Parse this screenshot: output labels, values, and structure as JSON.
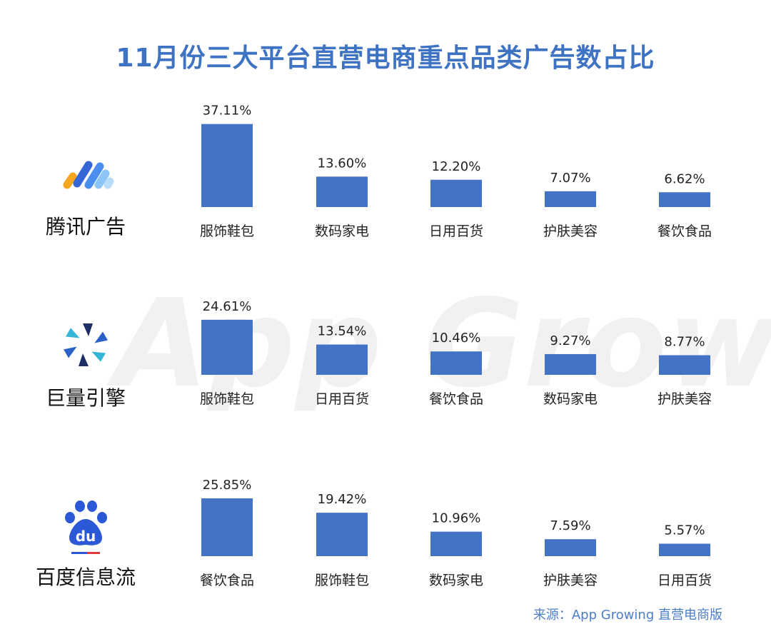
{
  "title": "11月份三大平台直营电商重点品类广告数占比",
  "watermark": "App Growing",
  "source": "来源：App Growing 直营电商版",
  "colors": {
    "bar": "#4472c4",
    "title": "#3e72c2",
    "text": "#222222",
    "source": "#4c7ec8"
  },
  "platforms": [
    {
      "name": "腾讯广告",
      "icon": "tencent-ads-logo-icon"
    },
    {
      "name": "巨量引擎",
      "icon": "ocean-engine-logo-icon"
    },
    {
      "name": "百度信息流",
      "icon": "baidu-paw-logo-icon"
    }
  ],
  "chart_data": [
    {
      "type": "bar",
      "title": "",
      "categories": [
        "服饰鞋包",
        "数码家电",
        "日用百货",
        "护肤美容",
        "餐饮食品"
      ],
      "values": [
        37.11,
        13.6,
        12.2,
        7.07,
        6.62
      ],
      "labels": [
        "37.11%",
        "13.60%",
        "12.20%",
        "7.07%",
        "6.62%"
      ]
    },
    {
      "type": "bar",
      "title": "",
      "categories": [
        "服饰鞋包",
        "日用百货",
        "餐饮食品",
        "数码家电",
        "护肤美容"
      ],
      "values": [
        24.61,
        13.54,
        10.46,
        9.27,
        8.77
      ],
      "labels": [
        "24.61%",
        "13.54%",
        "10.46%",
        "9.27%",
        "8.77%"
      ]
    },
    {
      "type": "bar",
      "title": "",
      "categories": [
        "餐饮食品",
        "服饰鞋包",
        "数码家电",
        "护肤美容",
        "日用百货"
      ],
      "values": [
        25.85,
        19.42,
        10.96,
        7.59,
        5.57
      ],
      "labels": [
        "25.85%",
        "19.42%",
        "10.96%",
        "7.59%",
        "5.57%"
      ]
    }
  ]
}
